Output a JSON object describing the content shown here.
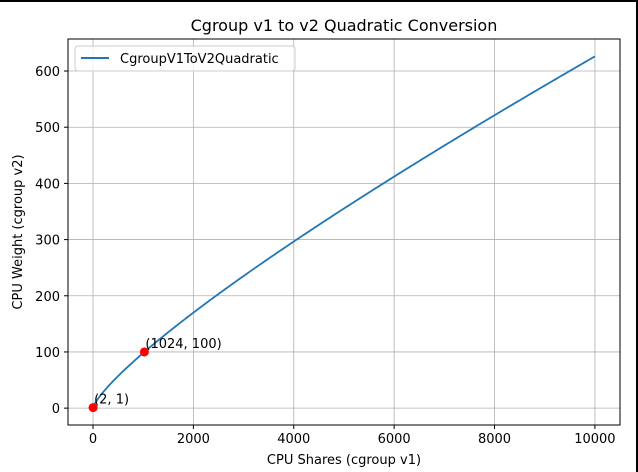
{
  "chart_data": {
    "type": "line",
    "title": "Cgroup v1 to v2 Quadratic Conversion",
    "xlabel": "CPU Shares (cgroup v1)",
    "ylabel": "CPU Weight (cgroup v2)",
    "xlim": [
      -498,
      10500
    ],
    "ylim": [
      -30,
      657
    ],
    "xticks": [
      0,
      2000,
      4000,
      6000,
      8000,
      10000
    ],
    "yticks": [
      0,
      100,
      200,
      300,
      400,
      500,
      600
    ],
    "grid": true,
    "legend": "upper-left",
    "series": [
      {
        "name": "CgroupV1ToV2Quadratic",
        "color": "#1f77b4",
        "x_range": [
          2,
          10000
        ],
        "x": [
          2,
          100,
          250,
          500,
          1024,
          2000,
          3000,
          4000,
          5000,
          6000,
          7000,
          8000,
          9000,
          10000
        ],
        "y": [
          1,
          25,
          45,
          68,
          100,
          163,
          232,
          298,
          358,
          412,
          470,
          524,
          576,
          626
        ]
      }
    ],
    "annotations": [
      {
        "x": 2,
        "y": 1,
        "label": "(2, 1)",
        "color": "#ff0000"
      },
      {
        "x": 1024,
        "y": 100,
        "label": "(1024, 100)",
        "color": "#ff0000"
      }
    ]
  }
}
